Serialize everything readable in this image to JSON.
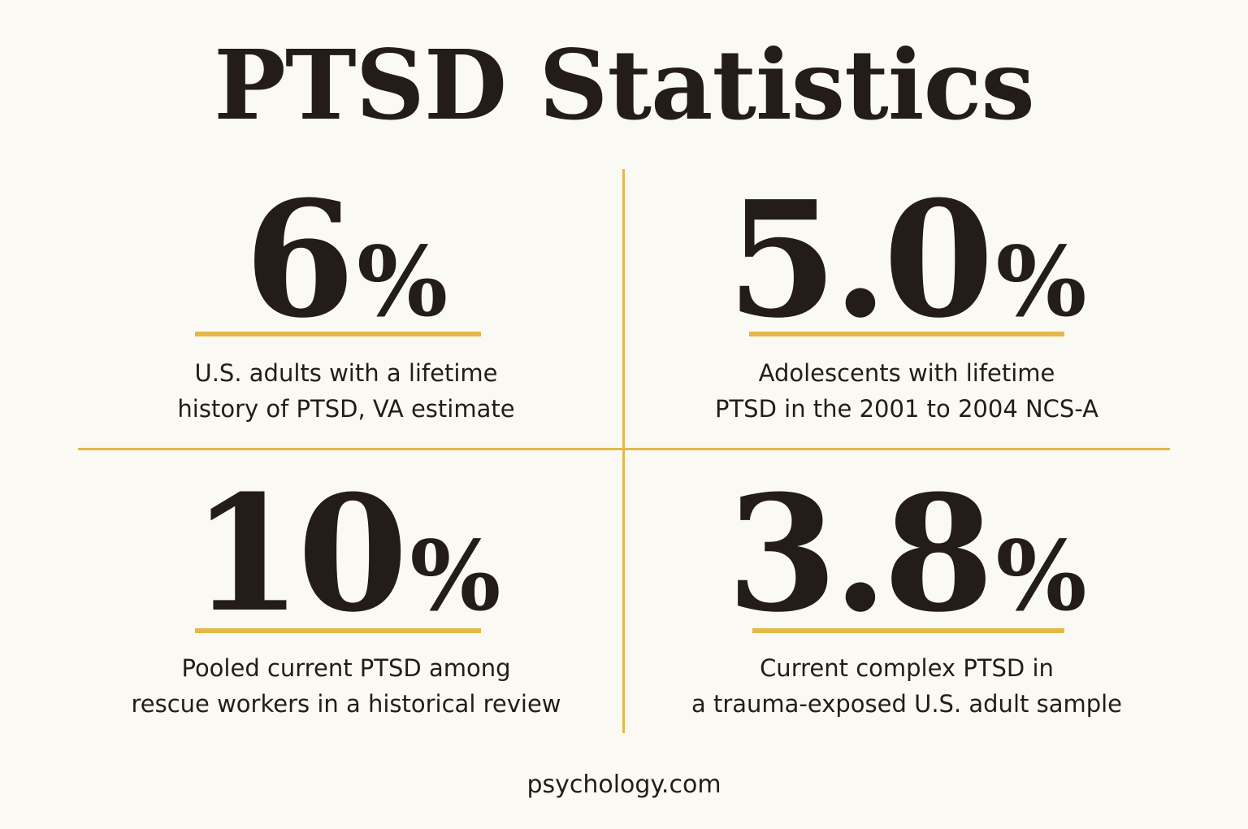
{
  "title": "PTSD Statistics",
  "colors": {
    "background": "#fbf9f3",
    "accent": "#e5b84a",
    "text": "#231c17"
  },
  "stats": [
    {
      "value": "6",
      "unit": "%",
      "caption_line1": "U.S. adults with a lifetime",
      "caption_line2": "history of PTSD, VA estimate"
    },
    {
      "value": "5.0",
      "unit": "%",
      "caption_line1": "Adolescents with lifetime",
      "caption_line2": "PTSD in the 2001 to 2004 NCS-A"
    },
    {
      "value": "10",
      "unit": "%",
      "caption_line1": "Pooled current PTSD among",
      "caption_line2": "rescue workers in a historical review"
    },
    {
      "value": "3.8",
      "unit": "%",
      "caption_line1": "Current complex PTSD in",
      "caption_line2": "a trauma-exposed U.S. adult sample"
    }
  ],
  "footer": "psychology.com"
}
